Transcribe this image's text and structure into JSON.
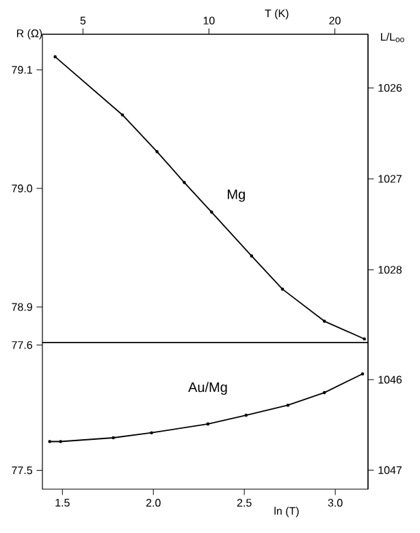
{
  "chart_data": [
    {
      "type": "line",
      "x2label": "T (K)",
      "ylabel": "R (Ω)",
      "y2label": "L/L$_{oo}$",
      "marker": "circle",
      "log": "x2",
      "tick_labels": "y",
      "series": [
        {
          "name": "Mg",
          "color": "#000000",
          "x": [
            1.46,
            1.83,
            2.02,
            2.17,
            2.32,
            2.54,
            2.71,
            2.94,
            3.16
          ],
          "values": [
            79.111,
            79.062,
            79.031,
            79.005,
            78.98,
            78.943,
            78.915,
            78.888,
            78.873
          ]
        }
      ],
      "xlim": [
        1.39,
        3.18
      ],
      "ylim": [
        78.87,
        79.13
      ],
      "yticks": [
        79.1,
        {
          "value": 79,
          "label": "79.0"
        },
        78.9
      ],
      "x2lim": [
        4.0,
        24.0
      ],
      "x2ticks": [
        5,
        10,
        20
      ],
      "y2lim": [
        1028.8,
        1025.41
      ],
      "y2ticks": [
        1026,
        1027,
        1028
      ]
    },
    {
      "type": "line",
      "xlabel": "ln (T)",
      "marker": "circle",
      "series": [
        {
          "name": "Au/Mg",
          "color": "#000000",
          "x": [
            1.43,
            1.49,
            1.78,
            1.99,
            2.3,
            2.51,
            2.74,
            2.94,
            3.15
          ],
          "values": [
            77.523,
            77.523,
            77.526,
            77.53,
            77.537,
            77.544,
            77.552,
            77.562,
            77.577
          ]
        }
      ],
      "xlim": [
        1.39,
        3.18
      ],
      "xticks": [
        1.5,
        {
          "value": 2,
          "label": "2.0"
        },
        2.5,
        {
          "value": 3,
          "label": "3.0"
        }
      ],
      "ylim": [
        77.485,
        77.602
      ],
      "yticks": [
        77.6,
        77.5
      ],
      "y2lim": [
        1047.21,
        1045.59
      ],
      "y2ticks": [
        1046,
        1047
      ]
    }
  ]
}
